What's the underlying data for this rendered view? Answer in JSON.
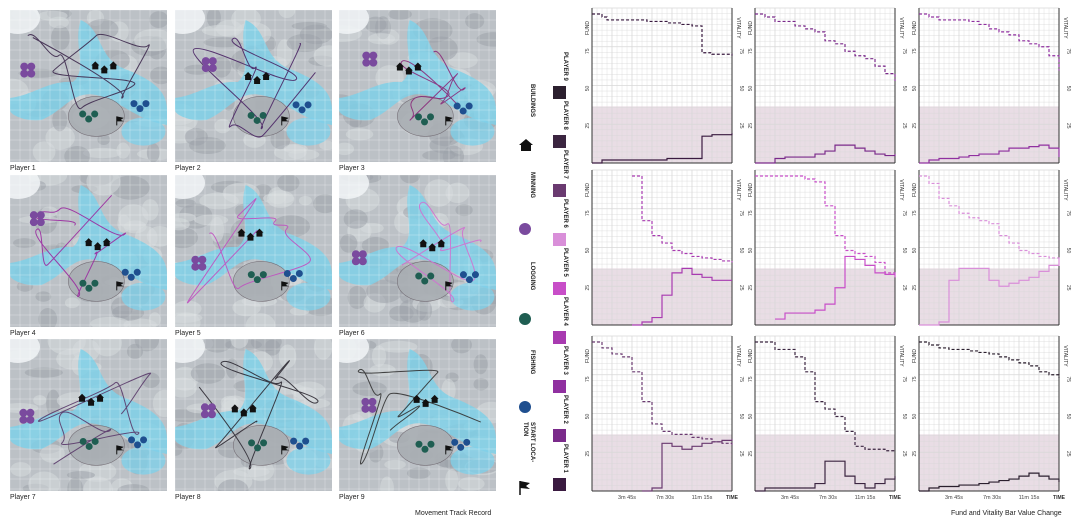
{
  "colors": {
    "water": "#7fd0e8",
    "land": "#bcc1c6",
    "grid": "#ffffff",
    "band": "#e3d4df",
    "mining": "#7a4a9e",
    "logging": "#1f5e52",
    "fishing": "#1f4f8f",
    "building": "#111111"
  },
  "maps": {
    "title": "Movement Track Record",
    "tiles": [
      {
        "label": "Player 1",
        "trail_color": "#3e2a4e"
      },
      {
        "label": "Player 2",
        "trail_color": "#4a2565"
      },
      {
        "label": "Player 3",
        "trail_color": "#8a2a7a"
      },
      {
        "label": "Player 4",
        "trail_color": "#9a2aa0"
      },
      {
        "label": "Player 5",
        "trail_color": "#c050c0"
      },
      {
        "label": "Player 6",
        "trail_color": "#d070d0"
      },
      {
        "label": "Player 7",
        "trail_color": "#5a3a6a"
      },
      {
        "label": "Player 8",
        "trail_color": "#2e2a33"
      },
      {
        "label": "Player 9",
        "trail_color": "#333333"
      }
    ]
  },
  "legend": {
    "icons": [
      {
        "label": "BUILDINGS",
        "icon": "house-icon"
      },
      {
        "label": "MINNING",
        "icon": "mining-dot-icon"
      },
      {
        "label": "LOGGING",
        "icon": "logging-dot-icon"
      },
      {
        "label": "FISHING",
        "icon": "fishing-dot-icon"
      },
      {
        "label": "START LOCA-TION",
        "icon": "flag-icon"
      }
    ],
    "players": [
      {
        "label": "PLAYER 9",
        "color": "#2b1f2e"
      },
      {
        "label": "PLAYER 8",
        "color": "#3b2540"
      },
      {
        "label": "PLAYER 7",
        "color": "#6a3a70"
      },
      {
        "label": "PLAYER 6",
        "color": "#d98fd9"
      },
      {
        "label": "PLAYER 5",
        "color": "#c84ec8"
      },
      {
        "label": "PLAYER 4",
        "color": "#a83ab0"
      },
      {
        "label": "PLAYER 3",
        "color": "#9030a0"
      },
      {
        "label": "PLAYER 2",
        "color": "#7a2a8a"
      },
      {
        "label": "PLAYER 1",
        "color": "#3a1a40"
      }
    ]
  },
  "charts": {
    "title": "Fund and Vitality Bar Value Change",
    "left_axis_label": "FUND",
    "right_axis_label": "VITALITY",
    "time_label": "TIME",
    "y_ticks": [
      "75",
      "50",
      "25"
    ],
    "x_ticks": [
      "3m 45s",
      "7m 30s",
      "11m 15s"
    ]
  },
  "chart_data": [
    {
      "type": "line",
      "player": "Player 9",
      "x": [
        0,
        1,
        1.5,
        4,
        5.5,
        6,
        7,
        7.5,
        8,
        9,
        9.5,
        10,
        11,
        12,
        14
      ],
      "series": [
        {
          "name": "Fund",
          "values": [
            100,
            98,
            96,
            96,
            95,
            95,
            95,
            94,
            94,
            93,
            93,
            92,
            74,
            73,
            72
          ]
        },
        {
          "name": "Vitality",
          "values": [
            0,
            2,
            2,
            2,
            2,
            2,
            2,
            3,
            3,
            3,
            3,
            3,
            18,
            19,
            20
          ]
        }
      ],
      "ylim": [
        0,
        100
      ]
    },
    {
      "type": "line",
      "player": "Player 8",
      "x": [
        0,
        1,
        2,
        3,
        4,
        5,
        6,
        7,
        8,
        9,
        10,
        11,
        12,
        13,
        14
      ],
      "series": [
        {
          "name": "Fund",
          "values": [
            100,
            98,
            95,
            95,
            92,
            90,
            88,
            82,
            80,
            75,
            72,
            70,
            65,
            60,
            55
          ]
        },
        {
          "name": "Vitality",
          "values": [
            0,
            0,
            3,
            4,
            4,
            4,
            6,
            8,
            12,
            12,
            10,
            8,
            6,
            5,
            6
          ]
        }
      ],
      "ylim": [
        0,
        100
      ]
    },
    {
      "type": "line",
      "player": "Player 7",
      "x": [
        0,
        1,
        2,
        3,
        4,
        5,
        6,
        7,
        8,
        9,
        10,
        11,
        12,
        13,
        14
      ],
      "series": [
        {
          "name": "Fund",
          "values": [
            100,
            98,
            96,
            96,
            96,
            95,
            93,
            90,
            88,
            86,
            82,
            80,
            78,
            72,
            62
          ]
        },
        {
          "name": "Vitality",
          "values": [
            0,
            2,
            3,
            3,
            4,
            5,
            6,
            6,
            8,
            10,
            10,
            11,
            12,
            10,
            4
          ]
        }
      ],
      "ylim": [
        0,
        100
      ]
    },
    {
      "type": "line",
      "player": "Player 6",
      "x": [
        0,
        1,
        2,
        3,
        4,
        5,
        6,
        7,
        8,
        9,
        10,
        11,
        12,
        13,
        14
      ],
      "series": [
        {
          "name": "Fund",
          "values": [
            null,
            null,
            null,
            null,
            100,
            70,
            60,
            55,
            50,
            48,
            46,
            45,
            44,
            43,
            42
          ]
        },
        {
          "name": "Vitality",
          "values": [
            null,
            null,
            null,
            null,
            0,
            2,
            5,
            20,
            35,
            38,
            34,
            32,
            30,
            30,
            30
          ]
        }
      ],
      "ylim": [
        0,
        100
      ]
    },
    {
      "type": "line",
      "player": "Player 5",
      "x": [
        0,
        1,
        2,
        3,
        4,
        5,
        6,
        7,
        8,
        9,
        10,
        11,
        12,
        13,
        14
      ],
      "series": [
        {
          "name": "Fund",
          "values": [
            100,
            100,
            100,
            100,
            100,
            98,
            96,
            80,
            60,
            50,
            48,
            46,
            42,
            35,
            34
          ]
        },
        {
          "name": "Vitality",
          "values": [
            null,
            null,
            4,
            8,
            8,
            8,
            10,
            14,
            25,
            46,
            44,
            40,
            35,
            34,
            32
          ]
        }
      ],
      "ylim": [
        0,
        100
      ]
    },
    {
      "type": "line",
      "player": "Player 4",
      "x": [
        0,
        1,
        2,
        3,
        4,
        5,
        6,
        7,
        8,
        9,
        10,
        11,
        12,
        13,
        14
      ],
      "series": [
        {
          "name": "Fund",
          "values": [
            100,
            95,
            85,
            80,
            75,
            72,
            70,
            68,
            60,
            55,
            50,
            48,
            46,
            45,
            44
          ]
        },
        {
          "name": "Vitality",
          "values": [
            0,
            0,
            2,
            30,
            38,
            38,
            38,
            30,
            26,
            28,
            30,
            32,
            36,
            40,
            45
          ]
        }
      ],
      "ylim": [
        0,
        100
      ]
    },
    {
      "type": "line",
      "player": "Player 3",
      "x": [
        0,
        1,
        2,
        3,
        4,
        5,
        6,
        7,
        8,
        9,
        10,
        11,
        12,
        13,
        14
      ],
      "series": [
        {
          "name": "Fund",
          "values": [
            100,
            96,
            92,
            90,
            80,
            60,
            45,
            40,
            38,
            38,
            36,
            35,
            33,
            32,
            30
          ]
        },
        {
          "name": "Vitality",
          "values": [
            null,
            null,
            null,
            null,
            null,
            0,
            2,
            32,
            30,
            28,
            30,
            32,
            33,
            34,
            35
          ]
        }
      ],
      "ylim": [
        0,
        100
      ]
    },
    {
      "type": "line",
      "player": "Player 2",
      "x": [
        0,
        1,
        2,
        3,
        4,
        5,
        6,
        7,
        8,
        9,
        10,
        11,
        12,
        13,
        14
      ],
      "series": [
        {
          "name": "Fund",
          "values": [
            100,
            100,
            95,
            95,
            90,
            80,
            60,
            55,
            50,
            40,
            30,
            28,
            28,
            27,
            27
          ]
        },
        {
          "name": "Vitality",
          "values": [
            0,
            2,
            2,
            2,
            2,
            2,
            5,
            20,
            20,
            10,
            5,
            2,
            5,
            8,
            10
          ]
        }
      ],
      "ylim": [
        0,
        100
      ]
    },
    {
      "type": "line",
      "player": "Player 1",
      "x": [
        0,
        1,
        2,
        3,
        4,
        5,
        6,
        7,
        8,
        9,
        10,
        11,
        12,
        13,
        14
      ],
      "series": [
        {
          "name": "Fund",
          "values": [
            100,
            98,
            96,
            95,
            95,
            94,
            93,
            92,
            90,
            88,
            86,
            84,
            80,
            78,
            76
          ]
        },
        {
          "name": "Vitality",
          "values": [
            0,
            2,
            3,
            3,
            4,
            4,
            5,
            6,
            7,
            8,
            10,
            12,
            10,
            8,
            6
          ]
        }
      ],
      "ylim": [
        0,
        100
      ]
    }
  ]
}
